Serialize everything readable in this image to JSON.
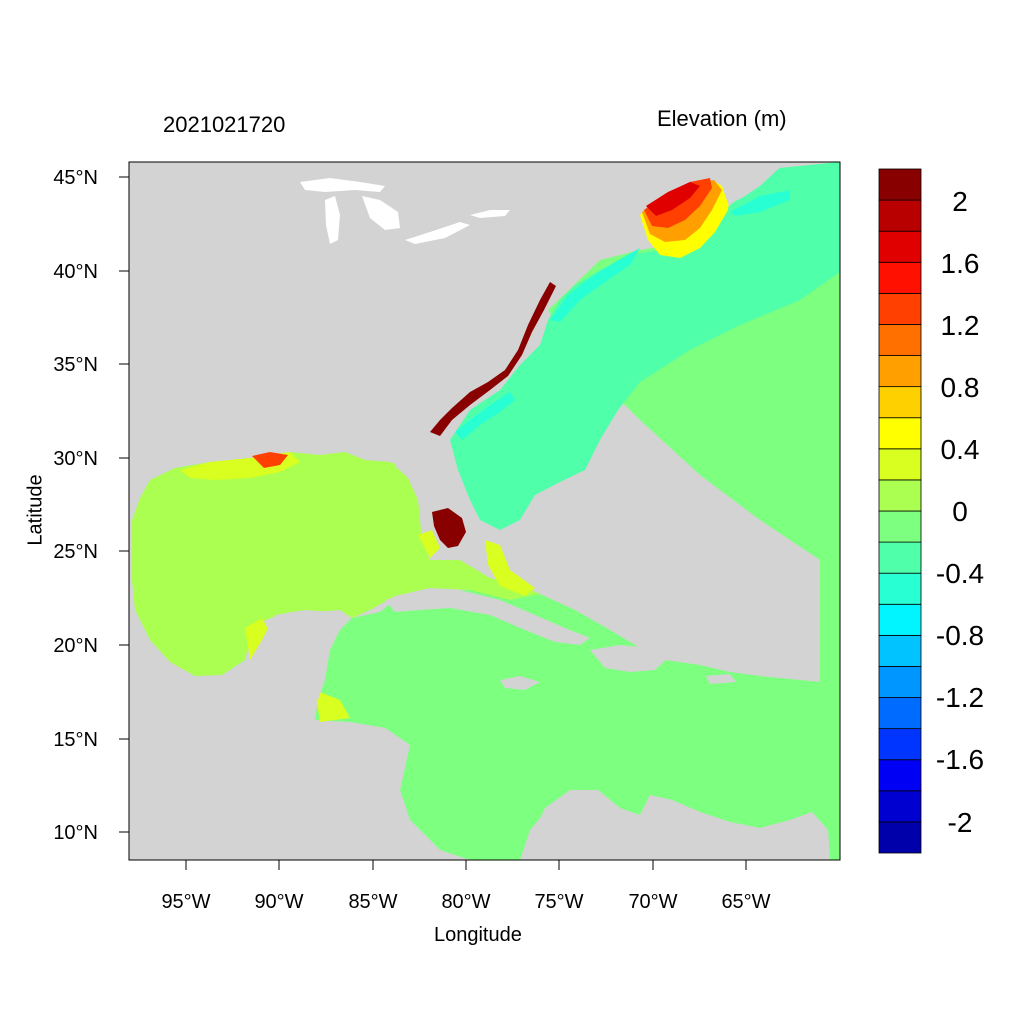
{
  "header": {
    "date_label": "2021021720",
    "units_label": "Elevation (m)"
  },
  "axes": {
    "xlabel": "Longitude",
    "ylabel": "Latitude",
    "x_ticks": [
      "95°W",
      "90°W",
      "85°W",
      "80°W",
      "75°W",
      "70°W",
      "65°W"
    ],
    "x_tick_values": [
      -95,
      -90,
      -85,
      -80,
      -75,
      -70,
      -65
    ],
    "y_ticks": [
      "45°N",
      "40°N",
      "35°N",
      "30°N",
      "25°N",
      "20°N",
      "15°N",
      "10°N"
    ],
    "y_tick_values": [
      45,
      40,
      35,
      30,
      25,
      20,
      15,
      10
    ],
    "lon_range": [
      -98,
      -60
    ],
    "lat_range": [
      8.5,
      46
    ]
  },
  "colorbar": {
    "colors": [
      "#0000aa",
      "#0000d0",
      "#0000f5",
      "#0035ff",
      "#006cff",
      "#0096ff",
      "#00c3ff",
      "#00f5ff",
      "#28ffd2",
      "#50ffaa",
      "#7dff80",
      "#aaff50",
      "#d8ff20",
      "#ffff00",
      "#ffd000",
      "#ffa000",
      "#ff7000",
      "#ff4000",
      "#ff1000",
      "#e00000",
      "#b80000",
      "#880000"
    ],
    "labels": [
      "2",
      "1.6",
      "1.2",
      "0.8",
      "0.4",
      "0",
      "-0.4",
      "-0.8",
      "-1.2",
      "-1.6",
      "-2"
    ]
  },
  "map_colors": {
    "land": "#d3d3d3",
    "ocean_open": "#7dff80",
    "ocean_shelf": "#50ffaa",
    "gulf": "#aaff50",
    "coast_surge": "#880000",
    "lakes": "#ffffff"
  }
}
